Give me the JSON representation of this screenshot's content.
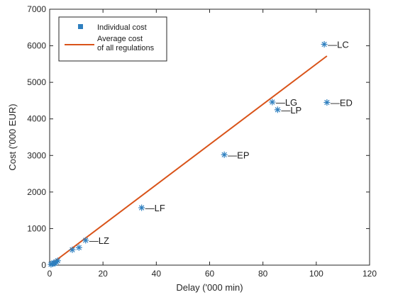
{
  "chart_data": {
    "type": "scatter",
    "title": "",
    "xlabel": "Delay ('000 min)",
    "ylabel": "Cost ('000 EUR)",
    "xlim": [
      0,
      120
    ],
    "ylim": [
      0,
      7000
    ],
    "xticks": [
      0,
      20,
      40,
      60,
      80,
      100,
      120
    ],
    "yticks": [
      0,
      1000,
      2000,
      3000,
      4000,
      5000,
      6000,
      7000
    ],
    "grid": false,
    "legend_position": "top-left",
    "series": [
      {
        "name": "Individual cost",
        "marker": "asterisk",
        "color": "#2e7fbf",
        "points": [
          {
            "x": 0.5,
            "y": 20,
            "label": ""
          },
          {
            "x": 1.0,
            "y": 40,
            "label": ""
          },
          {
            "x": 1.5,
            "y": 60,
            "label": ""
          },
          {
            "x": 2.0,
            "y": 50,
            "label": ""
          },
          {
            "x": 2.5,
            "y": 90,
            "label": ""
          },
          {
            "x": 3.0,
            "y": 120,
            "label": ""
          },
          {
            "x": 8.5,
            "y": 420,
            "label": ""
          },
          {
            "x": 11,
            "y": 480,
            "label": ""
          },
          {
            "x": 13.5,
            "y": 680,
            "label": "LZ"
          },
          {
            "x": 34.5,
            "y": 1570,
            "label": "LF"
          },
          {
            "x": 65.5,
            "y": 3020,
            "label": "EP"
          },
          {
            "x": 83.5,
            "y": 4460,
            "label": "LG"
          },
          {
            "x": 85.5,
            "y": 4250,
            "label": "LP"
          },
          {
            "x": 103,
            "y": 6040,
            "label": "LC"
          },
          {
            "x": 104,
            "y": 4450,
            "label": "ED"
          }
        ]
      },
      {
        "name": "Average cost\nof all regulations",
        "type": "line",
        "color": "#d95319",
        "x": [
          0,
          104
        ],
        "y": [
          0,
          5720
        ]
      }
    ]
  }
}
